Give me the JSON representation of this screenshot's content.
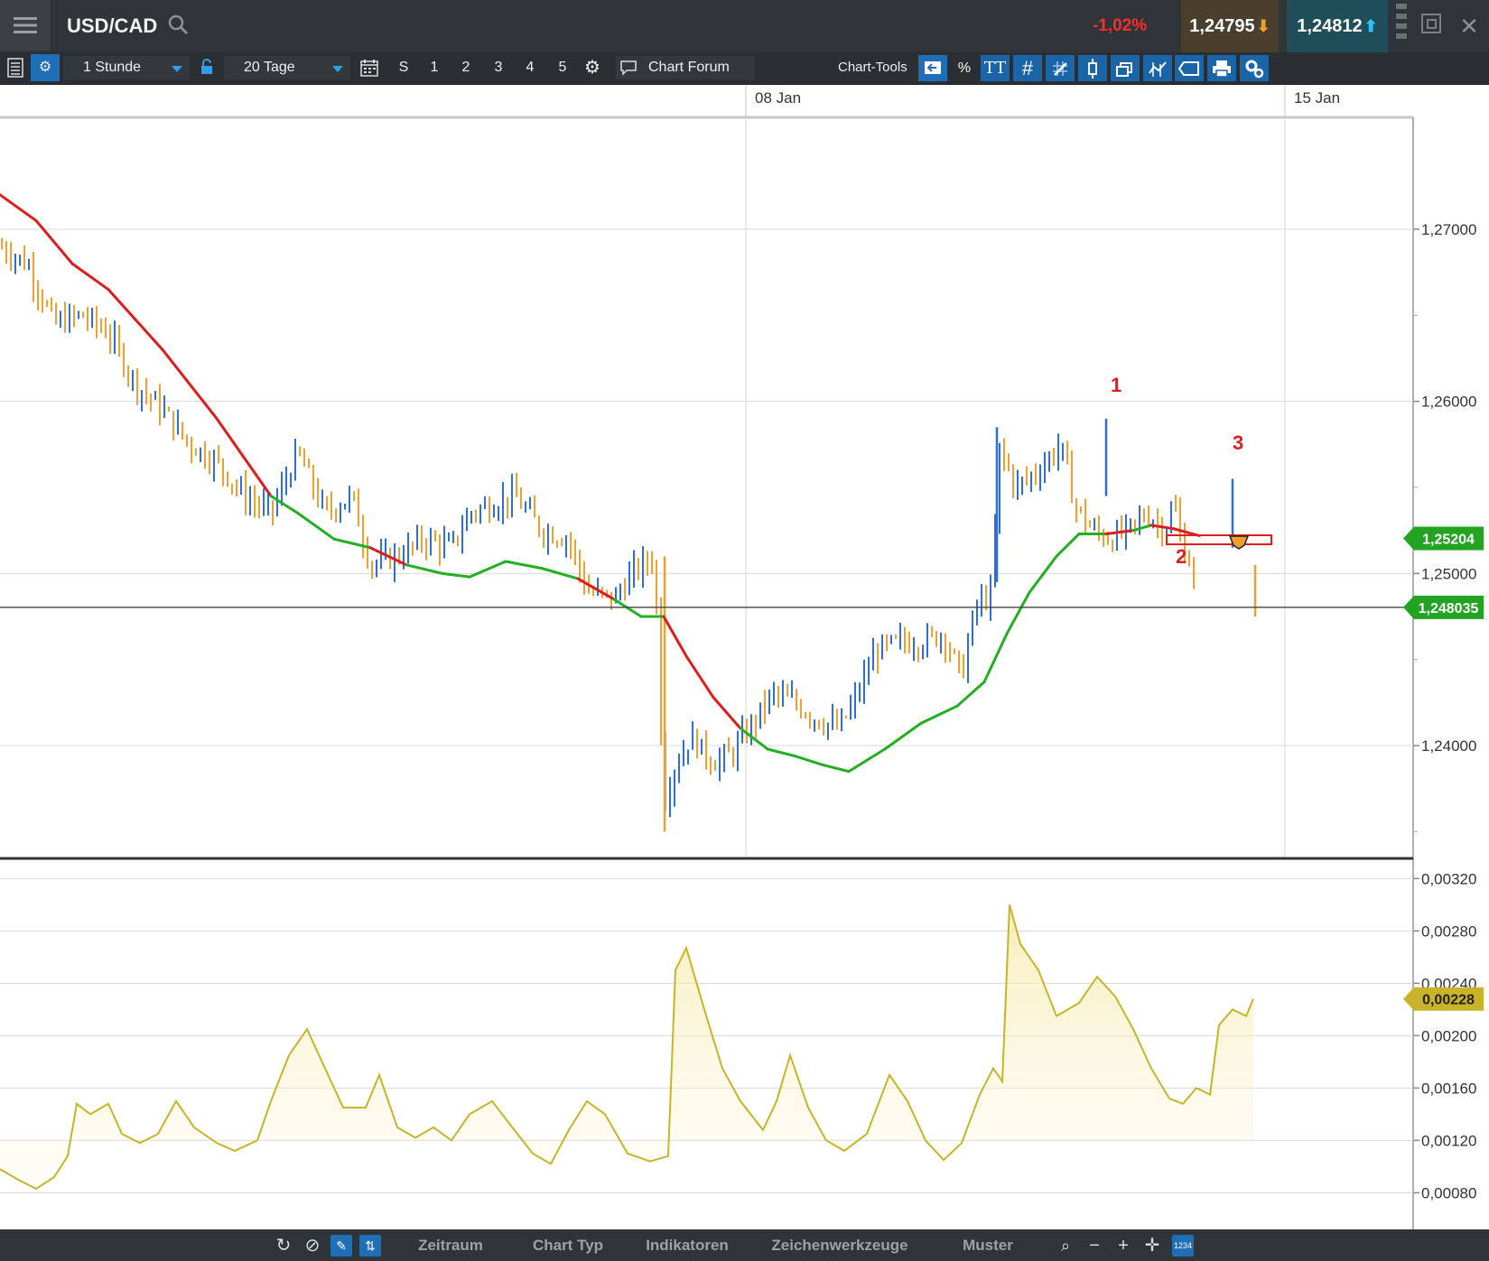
{
  "header": {
    "symbol": "USD/CAD",
    "change": "-1,02%",
    "bid": "1,24795",
    "ask": "1,24812"
  },
  "toolbar": {
    "interval": "1 Stunde",
    "range": "20 Tage",
    "buttons": [
      "S",
      "1",
      "2",
      "3",
      "4",
      "5"
    ],
    "chart_forum": "Chart Forum",
    "chart_tools": "Chart-Tools",
    "percent": "%",
    "text_tool": "TT"
  },
  "statusbar": {
    "zeitraum": "Zeitraum",
    "chart_typ": "Chart Typ",
    "indikatoren": "Indikatoren",
    "zeichenwerkzeuge": "Zeichenwerkzeuge",
    "muster": "Muster"
  },
  "chart_data": [
    {
      "type": "candlestick",
      "title": "",
      "x_tick_labels": [
        "08 Jan",
        "15 Jan"
      ],
      "y_tick_labels": [
        "1,27000",
        "1,26000",
        "1,25000",
        "1,24000"
      ],
      "ylim": [
        1.2335,
        1.2765
      ],
      "grid": true,
      "price_tags": [
        {
          "label": "1,25204",
          "value": 1.25204,
          "color": "#22a322"
        },
        {
          "label": "1,248035",
          "value": 1.248035,
          "color": "#22a322"
        }
      ],
      "annotations": [
        "1",
        "2",
        "3"
      ],
      "moving_average_colors": {
        "above": "#e01b1b",
        "below": "#22b022"
      },
      "up_color": "#2d6fd6",
      "down_color": "#f0a030",
      "close_path": [
        [
          0,
          1.269
        ],
        [
          30,
          1.268
        ],
        [
          60,
          1.2645
        ],
        [
          90,
          1.265
        ],
        [
          120,
          1.264
        ],
        [
          150,
          1.261
        ],
        [
          180,
          1.2595
        ],
        [
          210,
          1.2575
        ],
        [
          240,
          1.2565
        ],
        [
          270,
          1.2545
        ],
        [
          300,
          1.2535
        ],
        [
          330,
          1.257
        ],
        [
          360,
          1.2535
        ],
        [
          390,
          1.2545
        ],
        [
          410,
          1.2505
        ],
        [
          440,
          1.251
        ],
        [
          470,
          1.252
        ],
        [
          500,
          1.2515
        ],
        [
          520,
          1.2535
        ],
        [
          545,
          1.254
        ],
        [
          570,
          1.2545
        ],
        [
          600,
          1.2525
        ],
        [
          630,
          1.252
        ],
        [
          650,
          1.249
        ],
        [
          680,
          1.2485
        ],
        [
          700,
          1.25
        ],
        [
          725,
          1.251
        ],
        [
          735,
          1.2365
        ],
        [
          745,
          1.2385
        ],
        [
          765,
          1.2405
        ],
        [
          790,
          1.239
        ],
        [
          810,
          1.2395
        ],
        [
          830,
          1.241
        ],
        [
          855,
          1.243
        ],
        [
          880,
          1.2425
        ],
        [
          905,
          1.2415
        ],
        [
          930,
          1.241
        ],
        [
          950,
          1.243
        ],
        [
          970,
          1.2455
        ],
        [
          995,
          1.246
        ],
        [
          1020,
          1.246
        ],
        [
          1045,
          1.2465
        ],
        [
          1065,
          1.244
        ],
        [
          1080,
          1.248
        ],
        [
          1100,
          1.249
        ],
        [
          1105,
          1.2575
        ],
        [
          1125,
          1.255
        ],
        [
          1150,
          1.256
        ],
        [
          1175,
          1.2575
        ],
        [
          1190,
          1.254
        ],
        [
          1210,
          1.2525
        ],
        [
          1230,
          1.252
        ],
        [
          1250,
          1.2525
        ],
        [
          1270,
          1.2535
        ],
        [
          1290,
          1.2525
        ],
        [
          1300,
          1.254
        ],
        [
          1310,
          1.2515
        ],
        [
          1320,
          1.2505
        ],
        [
          1326,
          1.248
        ]
      ],
      "moving_average": [
        [
          0,
          1.272
        ],
        [
          40,
          1.2705
        ],
        [
          80,
          1.268
        ],
        [
          120,
          1.2665
        ],
        [
          180,
          1.263
        ],
        [
          240,
          1.259
        ],
        [
          300,
          1.2545
        ],
        [
          330,
          1.2535
        ],
        [
          370,
          1.252
        ],
        [
          410,
          1.2515
        ],
        [
          450,
          1.2505
        ],
        [
          490,
          1.25
        ],
        [
          520,
          1.2498
        ],
        [
          560,
          1.2507
        ],
        [
          600,
          1.2503
        ],
        [
          640,
          1.2497
        ],
        [
          680,
          1.2485
        ],
        [
          710,
          1.2475
        ],
        [
          735,
          1.2475
        ],
        [
          760,
          1.2452
        ],
        [
          790,
          1.2428
        ],
        [
          820,
          1.241
        ],
        [
          850,
          1.2398
        ],
        [
          880,
          1.2394
        ],
        [
          910,
          1.2389
        ],
        [
          940,
          1.2385
        ],
        [
          980,
          1.2398
        ],
        [
          1020,
          1.2413
        ],
        [
          1060,
          1.2423
        ],
        [
          1090,
          1.2437
        ],
        [
          1115,
          1.2465
        ],
        [
          1140,
          1.2489
        ],
        [
          1170,
          1.251
        ],
        [
          1195,
          1.2523
        ],
        [
          1225,
          1.2523
        ],
        [
          1255,
          1.2525
        ],
        [
          1275,
          1.2528
        ],
        [
          1300,
          1.2526
        ],
        [
          1328,
          1.2522
        ]
      ]
    },
    {
      "type": "area",
      "y_tick_labels": [
        "0,00320",
        "0,00280",
        "0,00240",
        "0,00200",
        "0,00160",
        "0,00120",
        "0,00080"
      ],
      "ylim": [
        0.00052,
        0.00334
      ],
      "current_label": "0,00228",
      "current_value": 0.00228,
      "color": "#c8b428",
      "values": [
        [
          0,
          0.00098
        ],
        [
          20,
          0.0009
        ],
        [
          40,
          0.00083
        ],
        [
          60,
          0.00092
        ],
        [
          75,
          0.00108
        ],
        [
          85,
          0.00148
        ],
        [
          100,
          0.0014
        ],
        [
          120,
          0.00148
        ],
        [
          135,
          0.00125
        ],
        [
          155,
          0.00118
        ],
        [
          175,
          0.00125
        ],
        [
          195,
          0.0015
        ],
        [
          215,
          0.0013
        ],
        [
          240,
          0.00118
        ],
        [
          260,
          0.00112
        ],
        [
          285,
          0.0012
        ],
        [
          300,
          0.0015
        ],
        [
          320,
          0.00185
        ],
        [
          340,
          0.00205
        ],
        [
          360,
          0.00175
        ],
        [
          380,
          0.00145
        ],
        [
          405,
          0.00145
        ],
        [
          420,
          0.0017
        ],
        [
          440,
          0.0013
        ],
        [
          460,
          0.00122
        ],
        [
          480,
          0.0013
        ],
        [
          500,
          0.0012
        ],
        [
          520,
          0.0014
        ],
        [
          545,
          0.0015
        ],
        [
          565,
          0.00132
        ],
        [
          590,
          0.0011
        ],
        [
          610,
          0.00102
        ],
        [
          630,
          0.00128
        ],
        [
          650,
          0.0015
        ],
        [
          670,
          0.0014
        ],
        [
          695,
          0.0011
        ],
        [
          720,
          0.00104
        ],
        [
          740,
          0.00108
        ],
        [
          748,
          0.0025
        ],
        [
          760,
          0.00267
        ],
        [
          780,
          0.0022
        ],
        [
          800,
          0.00175
        ],
        [
          820,
          0.0015
        ],
        [
          845,
          0.00128
        ],
        [
          860,
          0.0015
        ],
        [
          875,
          0.00185
        ],
        [
          895,
          0.00145
        ],
        [
          915,
          0.0012
        ],
        [
          935,
          0.00112
        ],
        [
          960,
          0.00125
        ],
        [
          985,
          0.0017
        ],
        [
          1005,
          0.0015
        ],
        [
          1025,
          0.0012
        ],
        [
          1045,
          0.00105
        ],
        [
          1065,
          0.00118
        ],
        [
          1085,
          0.00155
        ],
        [
          1100,
          0.00175
        ],
        [
          1110,
          0.00165
        ],
        [
          1118,
          0.003
        ],
        [
          1130,
          0.0027
        ],
        [
          1150,
          0.0025
        ],
        [
          1170,
          0.00215
        ],
        [
          1195,
          0.00225
        ],
        [
          1215,
          0.00245
        ],
        [
          1235,
          0.0023
        ],
        [
          1255,
          0.00205
        ],
        [
          1275,
          0.00175
        ],
        [
          1295,
          0.00152
        ],
        [
          1310,
          0.00148
        ],
        [
          1325,
          0.0016
        ],
        [
          1340,
          0.00155
        ],
        [
          1350,
          0.00208
        ],
        [
          1365,
          0.0022
        ],
        [
          1380,
          0.00215
        ],
        [
          1388,
          0.00228
        ]
      ]
    }
  ]
}
